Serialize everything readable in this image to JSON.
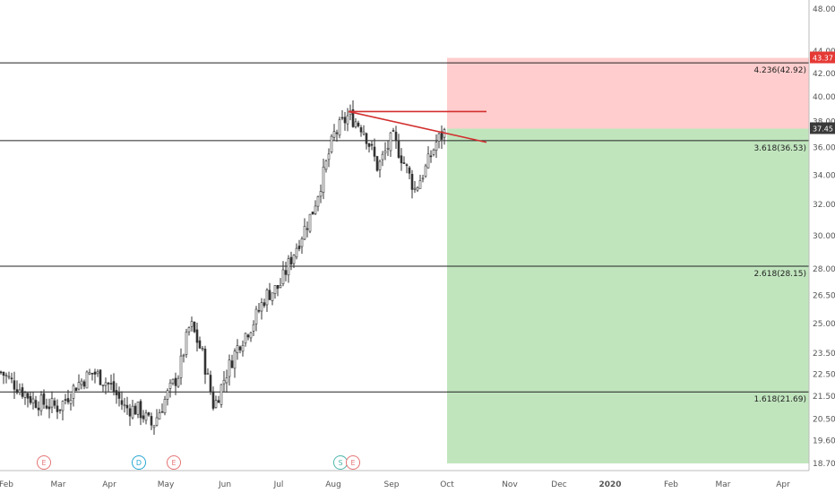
{
  "chart_data": {
    "type": "candlestick",
    "x_axis": {
      "labels": [
        "Feb",
        "Mar",
        "Apr",
        "May",
        "Jun",
        "Jul",
        "Aug",
        "Sep",
        "Oct",
        "Nov",
        "Dec",
        "2020",
        "Feb",
        "Mar",
        "Apr"
      ]
    },
    "y_axis": {
      "scale": "log",
      "ticks": [
        "48.00",
        "44.00",
        "42.00",
        "40.00",
        "38.00",
        "37.45",
        "36.00",
        "34.00",
        "32.00",
        "30.00",
        "28.00",
        "26.50",
        "25.00",
        "23.50",
        "22.50",
        "21.50",
        "20.50",
        "19.60",
        "18.70"
      ]
    },
    "last_price": {
      "value": "37.45"
    },
    "alert_price": {
      "value": "43.37"
    },
    "fib_levels": [
      {
        "label": "4.236(42.92)",
        "value": 42.92
      },
      {
        "label": "3.618(36.53)",
        "value": 36.53
      },
      {
        "label": "2.618(28.15)",
        "value": 28.15
      },
      {
        "label": "1.618(21.69)",
        "value": 21.69
      }
    ],
    "position": {
      "entry": 37.45,
      "stop": 43.37,
      "target": 18.7,
      "start": "Oct"
    },
    "events": [
      {
        "letter": "E",
        "month": "Mar",
        "color": "#e57373"
      },
      {
        "letter": "D",
        "month": "Apr",
        "color": "#26a6d1"
      },
      {
        "letter": "E",
        "month": "May",
        "color": "#e57373"
      },
      {
        "letter": "S",
        "month": "Aug",
        "color": "#4db6ac"
      },
      {
        "letter": "E",
        "month": "Aug",
        "color": "#e57373"
      }
    ],
    "trendlines": [
      {
        "from": [
          "Aug",
          38.8
        ],
        "to": [
          "Oct",
          36.4
        ],
        "color": "#d32f2f"
      },
      {
        "from": [
          "Aug",
          38.8
        ],
        "to": [
          "Oct",
          38.8
        ],
        "color": "#d32f2f"
      }
    ],
    "price_path": [
      [
        "Feb",
        22.6
      ],
      [
        "Feb",
        21.3
      ],
      [
        "Mar",
        21.0
      ],
      [
        "Mar",
        22.0
      ],
      [
        "Mar",
        22.6
      ],
      [
        "Apr",
        22.0
      ],
      [
        "Apr",
        21.0
      ],
      [
        "Apr",
        20.9
      ],
      [
        "Apr",
        20.2
      ],
      [
        "May",
        21.5
      ],
      [
        "May",
        22.5
      ],
      [
        "May",
        25.0
      ],
      [
        "May",
        23.5
      ],
      [
        "May",
        21.0
      ],
      [
        "Jun",
        22.5
      ],
      [
        "Jun",
        24.0
      ],
      [
        "Jun",
        25.0
      ],
      [
        "Jun",
        26.5
      ],
      [
        "Jul",
        27.0
      ],
      [
        "Jul",
        28.5
      ],
      [
        "Jul",
        30.0
      ],
      [
        "Jul",
        31.5
      ],
      [
        "Jul",
        34.0
      ],
      [
        "Aug",
        37.0
      ],
      [
        "Aug",
        38.5
      ],
      [
        "Aug",
        37.5
      ],
      [
        "Aug",
        34.5
      ],
      [
        "Sep",
        36.8
      ],
      [
        "Sep",
        35.0
      ],
      [
        "Sep",
        33.0
      ],
      [
        "Sep",
        34.5
      ],
      [
        "Sep",
        36.5
      ],
      [
        "Oct",
        37.45
      ]
    ]
  },
  "colors": {
    "up": "#333333",
    "down": "#333333",
    "stop_zone": "#ffcdcd",
    "target_zone": "#c0e5bd",
    "alert_badge": "#e53935",
    "price_badge": "#3a3a3a",
    "trendline": "#d32f2f"
  }
}
